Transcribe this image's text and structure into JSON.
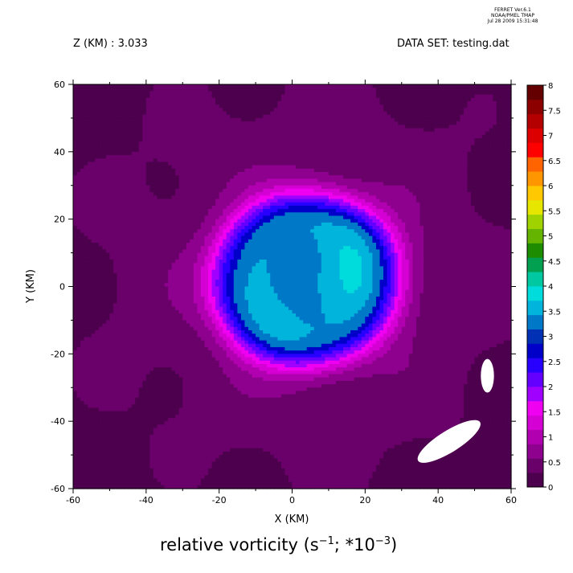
{
  "header": {
    "ferret_lines": [
      "FERRET  Ver.6.1",
      "NOAA/PMEL TMAP",
      "Jul 28 2009 15:31:48"
    ],
    "z_label": "Z (KM) : 3.033",
    "dataset_label": "DATA SET: testing.dat"
  },
  "chart_data": {
    "type": "heatmap",
    "title_prefix": "relative vorticity (s",
    "title_exp1": "−1",
    "title_mid": "; *10",
    "title_exp2": "−3",
    "title_suffix": ")",
    "xlabel": "X (KM)",
    "ylabel": "Y (KM)",
    "xlim": [
      -60,
      60
    ],
    "ylim": [
      -60,
      60
    ],
    "xticks": [
      "-60",
      "-40",
      "-20",
      "0",
      "20",
      "40",
      "60"
    ],
    "yticks": [
      "-60",
      "-40",
      "-20",
      "0",
      "20",
      "40",
      "60"
    ],
    "colorbar": {
      "labels": [
        "0",
        "0.5",
        "1",
        "1.5",
        "2",
        "2.5",
        "3",
        "3.5",
        "4",
        "4.5",
        "5",
        "5.5",
        "6",
        "6.5",
        "7",
        "7.5",
        "8"
      ],
      "colors": [
        "#4d004d",
        "#6a006a",
        "#8e008e",
        "#b000b0",
        "#d400d4",
        "#f000f0",
        "#a000ff",
        "#6400ff",
        "#2800ff",
        "#0000c8",
        "#0030b4",
        "#0078c8",
        "#00b4dc",
        "#00dcdc",
        "#00c8a0",
        "#00a050",
        "#1e8c00",
        "#64b400",
        "#a0d200",
        "#e6e600",
        "#ffc800",
        "#ff9600",
        "#ff6400",
        "#ff0000",
        "#dc0000",
        "#b40000",
        "#8c0000",
        "#640000"
      ]
    },
    "field_levels": [
      {
        "level": 0.25,
        "color": "#4d004d"
      },
      {
        "level": 0.5,
        "color": "#6a006a"
      },
      {
        "level": 0.8,
        "color": "#8e008e"
      },
      {
        "level": 1.1,
        "color": "#b000b0"
      },
      {
        "level": 1.4,
        "color": "#d400d4"
      },
      {
        "level": 1.7,
        "color": "#f000f0"
      },
      {
        "level": 2.0,
        "color": "#a000ff"
      },
      {
        "level": 2.3,
        "color": "#6400ff"
      },
      {
        "level": 2.6,
        "color": "#2800ff"
      },
      {
        "level": 2.9,
        "color": "#0000c8"
      },
      {
        "level": 3.2,
        "color": "#0078c8"
      },
      {
        "level": 3.6,
        "color": "#00b4dc"
      },
      {
        "level": 4.0,
        "color": "#00dcdc"
      },
      {
        "level": 4.5,
        "color": "#1e8c00"
      }
    ],
    "missing_regions": [
      {
        "x": 43,
        "y": -46,
        "rx": 10,
        "ry": 3.2,
        "rot": -32
      },
      {
        "x": 53.5,
        "y": -26.5,
        "rx": 1.8,
        "ry": 5,
        "rot": 0
      }
    ]
  }
}
